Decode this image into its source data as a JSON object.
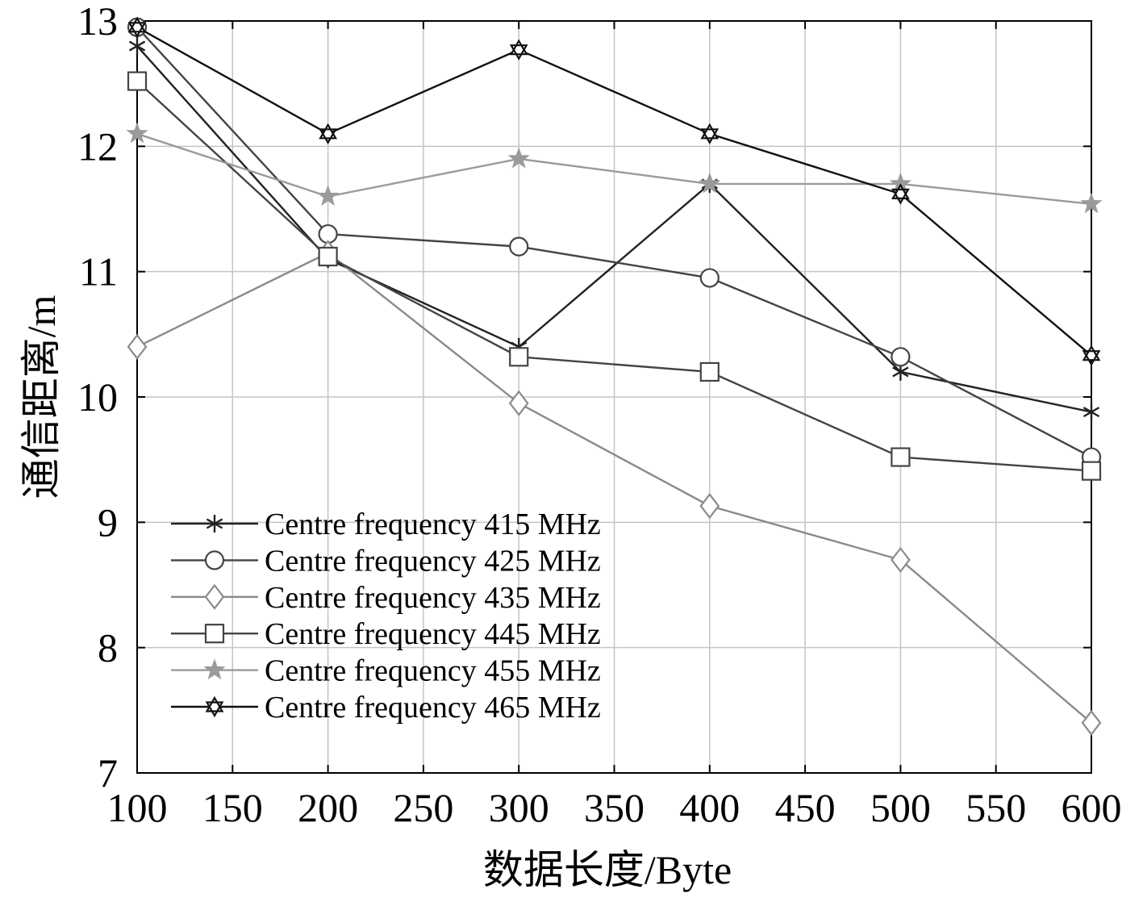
{
  "chart_data": {
    "type": "line",
    "xlabel": "数据长度/Byte",
    "ylabel": "通信距离/m",
    "xlim": [
      100,
      600
    ],
    "ylim": [
      7,
      13
    ],
    "xticks": [
      "100",
      "150",
      "200",
      "250",
      "300",
      "350",
      "400",
      "450",
      "500",
      "550",
      "600"
    ],
    "yticks": [
      "7",
      "8",
      "9",
      "10",
      "11",
      "12",
      "13"
    ],
    "grid": true,
    "legend_position": "bottom-left",
    "x": [
      100,
      200,
      300,
      400,
      500,
      600
    ],
    "series": [
      {
        "name": "Centre frequency 415 MHz",
        "marker": "asterisk",
        "color": "#222222",
        "values": [
          12.8,
          11.1,
          10.4,
          11.7,
          10.2,
          9.88
        ]
      },
      {
        "name": "Centre frequency 425 MHz",
        "marker": "circle",
        "color": "#444444",
        "values": [
          12.95,
          11.3,
          11.2,
          10.95,
          10.32,
          9.52
        ]
      },
      {
        "name": "Centre frequency 435 MHz",
        "marker": "diamond",
        "color": "#8a8a8a",
        "values": [
          10.4,
          11.15,
          9.95,
          9.13,
          8.7,
          7.4
        ]
      },
      {
        "name": "Centre frequency 445 MHz",
        "marker": "square",
        "color": "#444444",
        "values": [
          12.52,
          11.12,
          10.32,
          10.2,
          9.52,
          9.41
        ]
      },
      {
        "name": "Centre frequency 455 MHz",
        "marker": "star",
        "color": "#9a9a9a",
        "values": [
          12.1,
          11.6,
          11.9,
          11.7,
          11.7,
          11.54
        ]
      },
      {
        "name": "Centre frequency 465 MHz",
        "marker": "hexagram",
        "color": "#111111",
        "values": [
          12.95,
          12.1,
          12.77,
          12.1,
          11.62,
          10.33
        ]
      }
    ]
  }
}
